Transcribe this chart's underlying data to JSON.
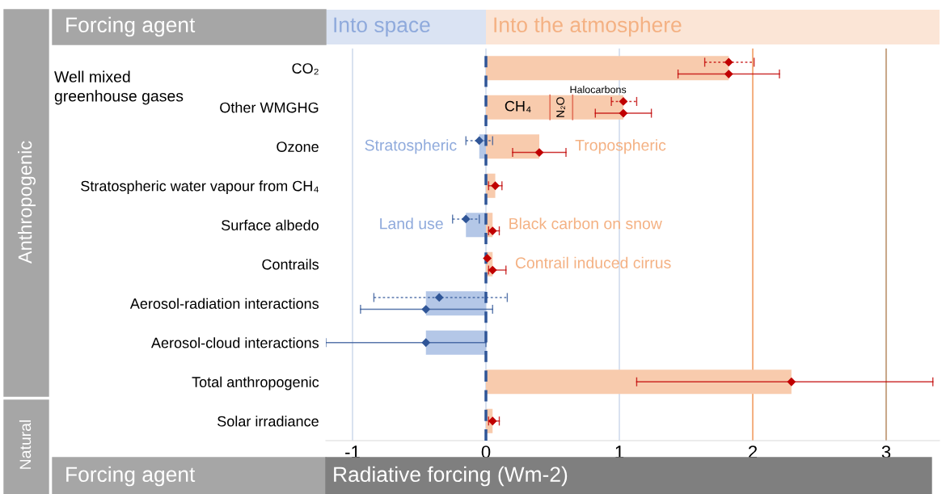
{
  "chart_data": {
    "type": "bar",
    "orientation": "horizontal",
    "stacked": true,
    "xlabel": "Radiative forcing (Wm-2)",
    "categories": [
      "CO₂",
      "Other WMGHG",
      "Ozone",
      "Stratospheric water vapour from CH₄",
      "Surface albedo",
      "Contrails",
      "Aerosol-radiation interactions",
      "Aerosol-cloud interactions",
      "Total anthropogenic",
      "Solar irradiance"
    ],
    "series": [
      {
        "color": "#f8cbad",
        "values": [
          1.82,
          null,
          0.4,
          0.07,
          0.05,
          0.05,
          null,
          null,
          2.29,
          0.05
        ]
      },
      {
        "name": "CH₄",
        "color": "#f8cbad",
        "values": [
          null,
          0.48,
          null,
          null,
          null,
          null,
          null,
          null,
          null,
          null
        ]
      },
      {
        "name": "N₂O",
        "color": "#f8cbad",
        "values": [
          null,
          0.17,
          null,
          null,
          null,
          null,
          null,
          null,
          null,
          null
        ]
      },
      {
        "name": "Halocarbons",
        "color": "#f8cbad",
        "values": [
          null,
          0.38,
          null,
          null,
          null,
          null,
          null,
          null,
          null,
          null
        ]
      },
      {
        "color": "#b4c7e7",
        "values": [
          null,
          null,
          -0.05,
          null,
          -0.15,
          null,
          -0.45,
          -0.45,
          null,
          null
        ]
      },
      {
        "type": "scatter",
        "line_style": "solid",
        "values": [
          1.82,
          1.03,
          0.4,
          0.07,
          0.05,
          0.05,
          -0.45,
          -0.45,
          2.29,
          0.05
        ],
        "colors": [
          "#c00000",
          "#c00000",
          "#c00000",
          "#c00000",
          "#c00000",
          "#c00000",
          "#2f5597",
          "#2f5597",
          "#c00000",
          "#c00000"
        ],
        "errors": [
          [
            1.44,
            2.2
          ],
          [
            0.82,
            1.24
          ],
          [
            0.2,
            0.6
          ],
          [
            0.02,
            0.12
          ],
          [
            0.02,
            0.1
          ],
          [
            0.02,
            0.15
          ],
          [
            -0.94,
            0.05
          ],
          [
            -1.2,
            0.0
          ],
          [
            1.13,
            3.35
          ],
          [
            0.02,
            0.1
          ]
        ]
      },
      {
        "type": "scatter",
        "line_style": "dotted",
        "values": [
          1.82,
          1.03,
          -0.05,
          null,
          -0.15,
          0.01,
          -0.35,
          null,
          null,
          null
        ],
        "colors": [
          "#c00000",
          "#c00000",
          "#2f5597",
          "#c00000",
          "#2f5597",
          "#c00000",
          "#2f5597",
          "#2f5597",
          "#c00000",
          "#c00000"
        ],
        "errors": [
          [
            1.64,
            2.01
          ],
          [
            0.94,
            1.13
          ],
          [
            -0.15,
            0.05
          ],
          null,
          [
            -0.25,
            -0.05
          ],
          null,
          [
            -0.84,
            0.16
          ],
          null,
          null,
          null
        ]
      }
    ],
    "marker": "diamond",
    "xlim": [
      -1.2,
      3.4
    ],
    "xticks": [
      {
        "value": -1,
        "label": "-1"
      },
      0,
      1,
      2,
      3
    ],
    "grid": "x",
    "ref_lines": [
      {
        "axis": "x",
        "value": 0,
        "color": "#2f5597",
        "line_style": "dashed"
      },
      {
        "axis": "x",
        "value": 2,
        "color": "#f4b183"
      },
      {
        "axis": "x",
        "value": 3,
        "color": "#c9a88a"
      }
    ],
    "annotations": [
      {
        "text": "Stratospheric",
        "x": -0.15,
        "y": "Ozone"
      },
      {
        "text": "Tropospheric",
        "x": 0.6,
        "y": "Ozone"
      },
      {
        "text": "Land use",
        "x": -0.25,
        "y": "Surface albedo"
      },
      {
        "text": "Black carbon on snow",
        "x": 0.1,
        "y": "Surface albedo"
      },
      {
        "text": "Contrail induced cirrus",
        "x": 0.15,
        "y": "Contrails"
      },
      "Well mixed\ngreenhouse gases",
      "Anthropogenic",
      "Natural",
      "Forcing agent",
      "Forcing agent",
      "Into space",
      "Into the atmosphere"
    ]
  }
}
